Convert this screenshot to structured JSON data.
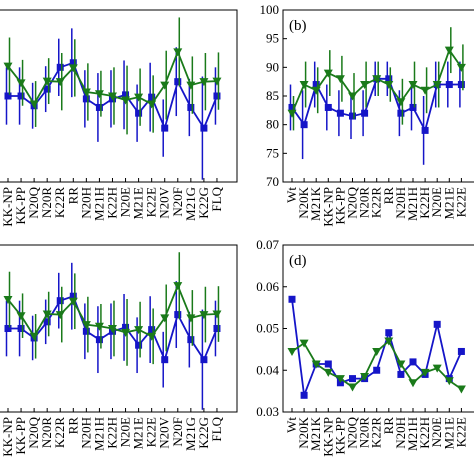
{
  "chart_data": [
    {
      "type": "line",
      "categories": [
        "KK-NP",
        "KK-PP",
        "N20Q",
        "N20R",
        "K22R",
        "RR",
        "N20H",
        "M21H",
        "K22H",
        "N20E",
        "M21E",
        "K22E",
        "N20V",
        "N20F",
        "M21G",
        "K22G",
        "FLQ"
      ],
      "ylim": [
        70,
        100
      ],
      "series": [
        {
          "color": "#1515c8",
          "marker": "square",
          "values": [
            85,
            85,
            83.3,
            86.2,
            90,
            90.8,
            84.5,
            83,
            84.5,
            85.2,
            82,
            84.8,
            79.4,
            87.5,
            83,
            79.4,
            85
          ],
          "errors": [
            5,
            5,
            4,
            4,
            5,
            6,
            5,
            6,
            5,
            6,
            5,
            6,
            5,
            6,
            5,
            9,
            5
          ]
        },
        {
          "color": "#1a7a1a",
          "marker": "triangle",
          "values": [
            90.2,
            87.3,
            83.6,
            87.6,
            87.5,
            89.9,
            85.7,
            85.4,
            85,
            84.3,
            84.8,
            83.6,
            86.9,
            92.7,
            86.9,
            87.5,
            87.6
          ],
          "errors": [
            5,
            4,
            4,
            4,
            5,
            5,
            5,
            4,
            5,
            6,
            5,
            5,
            6,
            6,
            5,
            5,
            5
          ]
        }
      ]
    },
    {
      "type": "line",
      "panel_label": "(b)",
      "categories": [
        "Wt",
        "N20K",
        "M21K",
        "KK-NP",
        "KK-PP",
        "N20Q",
        "N20R",
        "K22R",
        "RR",
        "N20H",
        "M21H",
        "K22H",
        "N20E",
        "M21E",
        "K22E"
      ],
      "ylim": [
        70,
        100
      ],
      "yticks": [
        70,
        75,
        80,
        85,
        90,
        95,
        100
      ],
      "series": [
        {
          "color": "#1515c8",
          "marker": "square",
          "values": [
            83,
            80,
            87,
            83,
            82,
            81.5,
            82,
            88,
            88,
            82,
            83,
            79,
            87,
            87,
            87
          ],
          "errors": [
            4,
            6,
            4,
            4,
            4,
            4,
            4,
            3,
            3,
            4,
            4,
            6,
            4,
            4,
            4
          ]
        },
        {
          "color": "#1a7a1a",
          "marker": "triangle",
          "values": [
            82,
            87,
            86,
            89,
            88,
            85,
            87,
            88,
            87,
            84,
            87,
            86,
            87,
            93,
            90
          ],
          "errors": [
            3,
            4,
            4,
            4,
            4,
            4,
            4,
            3,
            3,
            4,
            4,
            4,
            4,
            4,
            4
          ]
        }
      ]
    },
    {
      "type": "line",
      "categories": [
        "KK-NP",
        "KK-PP",
        "N20Q",
        "N20R",
        "K22R",
        "RR",
        "N20H",
        "M21H",
        "K22H",
        "N20E",
        "M21E",
        "K22E",
        "N20V",
        "N20F",
        "M21G",
        "K22G",
        "FLQ"
      ],
      "ylim": [
        70,
        100
      ],
      "series": [
        {
          "color": "#1515c8",
          "marker": "square",
          "values": [
            85,
            85,
            83.3,
            86.2,
            90,
            90.8,
            84.5,
            83,
            84.5,
            85.2,
            82,
            84.8,
            79.4,
            87.5,
            83,
            79.4,
            85
          ],
          "errors": [
            5,
            5,
            4,
            4,
            5,
            6,
            5,
            6,
            5,
            6,
            5,
            6,
            5,
            6,
            5,
            9,
            5
          ]
        },
        {
          "color": "#1a7a1a",
          "marker": "triangle",
          "values": [
            90.2,
            87.3,
            83.6,
            87.6,
            87.5,
            89.9,
            85.7,
            85.4,
            85,
            84.3,
            84.8,
            83.6,
            86.9,
            92.7,
            86.9,
            87.5,
            87.6
          ],
          "errors": [
            5,
            4,
            4,
            4,
            5,
            5,
            5,
            4,
            5,
            6,
            5,
            5,
            6,
            6,
            5,
            5,
            5
          ]
        }
      ]
    },
    {
      "type": "line",
      "panel_label": "(d)",
      "categories": [
        "Wt",
        "N20K",
        "M21K",
        "KK-NP",
        "KK-PP",
        "N20Q",
        "N20R",
        "K22R",
        "RR",
        "N20H",
        "M21H",
        "K22H",
        "N20E",
        "M21E",
        "K22E"
      ],
      "ylim": [
        0.03,
        0.07
      ],
      "yticks": [
        0.03,
        0.04,
        0.05,
        0.06,
        0.07
      ],
      "series": [
        {
          "color": "#1515c8",
          "marker": "square",
          "values": [
            0.057,
            0.034,
            0.0415,
            0.0415,
            0.037,
            0.038,
            0.038,
            0.04,
            0.049,
            0.039,
            0.042,
            0.039,
            0.051,
            0.038,
            0.0445
          ]
        },
        {
          "color": "#1a7a1a",
          "marker": "triangle",
          "values": [
            0.0445,
            0.0465,
            0.0415,
            0.0395,
            0.038,
            0.036,
            0.0385,
            0.0445,
            0.047,
            0.0415,
            0.037,
            0.0395,
            0.0405,
            0.0375,
            0.0355
          ]
        }
      ]
    }
  ]
}
